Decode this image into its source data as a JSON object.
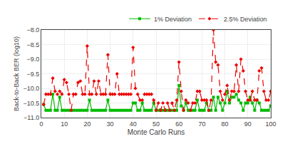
{
  "chart_data": {
    "type": "line",
    "xlabel": "Monte Carlo Runs",
    "ylabel": "Back-to-Back BER (log10)",
    "xlim": [
      0,
      100
    ],
    "ylim": [
      -11,
      -8
    ],
    "xticks": [
      0,
      10,
      20,
      30,
      40,
      50,
      60,
      70,
      80,
      90,
      100
    ],
    "yticks": [
      {
        "value": -11,
        "label": "−11.0"
      },
      {
        "value": -10.5,
        "label": "−10.5"
      },
      {
        "value": -10,
        "label": "−10.0"
      },
      {
        "value": -9.5,
        "label": "−9.5"
      },
      {
        "value": -9,
        "label": "−9.0"
      },
      {
        "value": -8.5,
        "label": "−8.5"
      },
      {
        "value": -8,
        "label": "−8.0"
      }
    ],
    "grid": true,
    "legend": "upper right",
    "x": [
      1,
      2,
      3,
      4,
      5,
      6,
      7,
      8,
      9,
      10,
      11,
      12,
      13,
      14,
      15,
      16,
      17,
      18,
      19,
      20,
      21,
      22,
      23,
      24,
      25,
      26,
      27,
      28,
      29,
      30,
      31,
      32,
      33,
      34,
      35,
      36,
      37,
      38,
      39,
      40,
      41,
      42,
      43,
      44,
      45,
      46,
      47,
      48,
      49,
      50,
      51,
      52,
      53,
      54,
      55,
      56,
      57,
      58,
      59,
      60,
      61,
      62,
      63,
      64,
      65,
      66,
      67,
      68,
      69,
      70,
      71,
      72,
      73,
      74,
      75,
      76,
      77,
      78,
      79,
      80,
      81,
      82,
      83,
      84,
      85,
      86,
      87,
      88,
      89,
      90,
      91,
      92,
      93,
      94,
      95,
      96,
      97,
      98,
      99,
      100
    ],
    "series": [
      {
        "name": "1% Deviation",
        "color": "#00bb00",
        "marker": "square",
        "line_style": "solid",
        "values": [
          -10.55,
          -10.75,
          -10.75,
          -10.75,
          -10.2,
          -10.75,
          -10.75,
          -10.3,
          -10.75,
          -10.75,
          -10.75,
          -10.75,
          -10.75,
          -10.75,
          -10.75,
          -10.75,
          -10.75,
          -10.75,
          -10.75,
          -10.75,
          -10.4,
          -10.75,
          -10.75,
          -10.75,
          -10.75,
          -10.75,
          -10.75,
          -10.75,
          -10.4,
          -10.75,
          -10.75,
          -10.75,
          -10.75,
          -10.75,
          -10.75,
          -10.75,
          -10.75,
          -10.75,
          -10.75,
          -10.5,
          -10.5,
          -10.75,
          -10.75,
          -10.5,
          -10.75,
          -10.75,
          -10.75,
          -10.75,
          -10.5,
          -10.75,
          -10.75,
          -10.75,
          -10.75,
          -10.75,
          -10.75,
          -10.75,
          -10.75,
          -10.75,
          -10.75,
          -9.9,
          -10.6,
          -10.75,
          -10.5,
          -10.75,
          -10.75,
          -10.75,
          -10.75,
          -10.4,
          -10.75,
          -10.75,
          -10.75,
          -10.5,
          -10.75,
          -10.75,
          -10.3,
          -10.75,
          -10.3,
          -10.5,
          -10.75,
          -10.5,
          -10.1,
          -10.5,
          -10.3,
          -10.3,
          -10.2,
          -10.4,
          -10.5,
          -10.75,
          -10.5,
          -10.5,
          -10.3,
          -10.5,
          -10.75,
          -10.4,
          -10.5,
          -10.75,
          -10.75,
          -10.75,
          -10.75,
          -10.6
        ]
      },
      {
        "name": "2.5% Deviation",
        "color": "#ee0000",
        "marker": "diamond",
        "line_style": "dashed",
        "values": [
          -10.55,
          -10.2,
          -10.2,
          -10.2,
          -9.65,
          -10.1,
          -10.2,
          -10.1,
          -10.2,
          -9.7,
          -9.8,
          -10.2,
          -10.75,
          -10.2,
          -10.2,
          -9.8,
          -9.75,
          -10.2,
          -10.2,
          -8.55,
          -10.2,
          -10.2,
          -9.75,
          -10.2,
          -9.75,
          -10.2,
          -10.2,
          -10.2,
          -8.85,
          -10.2,
          -10.2,
          -10.2,
          -9.5,
          -10.2,
          -10.2,
          -10.2,
          -10.2,
          -10.2,
          -10.2,
          -8.6,
          -10.0,
          -10.2,
          -10.4,
          -10.4,
          -10.2,
          -10.2,
          -10.2,
          -10.2,
          -10.4,
          -10.75,
          -10.5,
          -10.75,
          -10.5,
          -10.75,
          -10.5,
          -10.75,
          -10.5,
          -10.75,
          -10.4,
          -9.1,
          -10.1,
          -10.75,
          -10.4,
          -10.5,
          -10.75,
          -10.5,
          -10.5,
          -10.1,
          -10.1,
          -10.4,
          -10.4,
          -10.4,
          -10.75,
          -10.4,
          -8.0,
          -9.1,
          -9.2,
          -10.1,
          -10.4,
          -10.2,
          -9.9,
          -10.4,
          -10.1,
          -10.1,
          -9.2,
          -10.1,
          -9.0,
          -9.4,
          -10.1,
          -10.4,
          -10.4,
          -10.1,
          -10.4,
          -10.4,
          -9.4,
          -9.3,
          -10.1,
          -10.4,
          -10.4,
          -10.1
        ]
      }
    ]
  }
}
